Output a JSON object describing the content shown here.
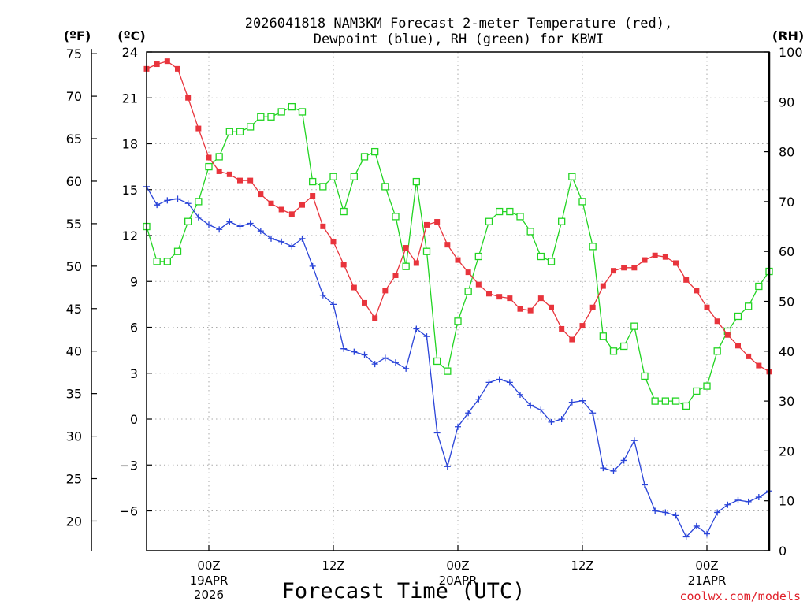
{
  "chart_data": {
    "type": "line",
    "title_line1": "2026041818 NAM3KM Forecast 2-meter Temperature (red),",
    "title_line2": "Dewpoint (blue), RH (green) for KBWI",
    "xlabel": "Forecast Time (UTC)",
    "credit": "coolwx.com/models",
    "x_unit": "forecast hour (hours after 2026041818)",
    "x_range": [
      0,
      60
    ],
    "units": {
      "fahrenheit": "(ºF)",
      "celsius": "(ºC)",
      "rh": "(RH)"
    },
    "celsius_range": [
      -8.6,
      24.0
    ],
    "celsius_ticks": [
      "24",
      "21",
      "18",
      "15",
      "12",
      "9",
      "6",
      "3",
      "0",
      "−3",
      "−6"
    ],
    "celsius_tick_values": [
      24,
      21,
      18,
      15,
      12,
      9,
      6,
      3,
      0,
      -3,
      -6
    ],
    "fahrenheit_ticks": [
      "75",
      "70",
      "65",
      "60",
      "55",
      "50",
      "45",
      "40",
      "35",
      "30",
      "25",
      "20"
    ],
    "fahrenheit_tick_values": [
      75,
      70,
      65,
      60,
      55,
      50,
      45,
      40,
      35,
      30,
      25,
      20
    ],
    "rh_range": [
      0,
      100
    ],
    "rh_ticks": [
      "100",
      "90",
      "80",
      "70",
      "60",
      "50",
      "40",
      "30",
      "20",
      "10",
      "0"
    ],
    "rh_tick_values": [
      100,
      90,
      80,
      70,
      60,
      50,
      40,
      30,
      20,
      10,
      0
    ],
    "x_ticks": [
      {
        "hour": 6,
        "line1": "00Z",
        "line2": "19APR",
        "line3": "2026"
      },
      {
        "hour": 18,
        "line1": "12Z",
        "line2": "",
        "line3": ""
      },
      {
        "hour": 30,
        "line1": "00Z",
        "line2": "20APR",
        "line3": ""
      },
      {
        "hour": 42,
        "line1": "12Z",
        "line2": "",
        "line3": ""
      },
      {
        "hour": 54,
        "line1": "00Z",
        "line2": "21APR",
        "line3": ""
      }
    ],
    "colors": {
      "temperature": "#e8343c",
      "dewpoint": "#2a44d8",
      "rh": "#22d422",
      "grid": "#aaaaaa",
      "credit": "#e0202a"
    },
    "series": [
      {
        "name": "Temperature",
        "axis": "celsius",
        "marker": "filled-square",
        "color": "#e8343c",
        "x": [
          0,
          1,
          2,
          3,
          4,
          5,
          6,
          7,
          8,
          9,
          10,
          11,
          12,
          13,
          14,
          15,
          16,
          17,
          18,
          19,
          20,
          21,
          22,
          23,
          24,
          25,
          26,
          27,
          28,
          29,
          30,
          31,
          32,
          33,
          34,
          35,
          36,
          37,
          38,
          39,
          40,
          41,
          42,
          43,
          44,
          45,
          46,
          47,
          48,
          49,
          50,
          51,
          52,
          53,
          54,
          55,
          56,
          57,
          58,
          59,
          60
        ],
        "values": [
          22.9,
          23.2,
          23.4,
          22.9,
          21.0,
          19.0,
          17.1,
          16.2,
          16.0,
          15.6,
          15.6,
          14.7,
          14.1,
          13.7,
          13.4,
          14.0,
          14.6,
          12.6,
          11.6,
          10.1,
          8.6,
          7.6,
          6.6,
          8.4,
          9.4,
          11.2,
          10.2,
          12.7,
          12.9,
          11.4,
          10.4,
          9.6,
          8.8,
          8.2,
          8.0,
          7.9,
          7.2,
          7.1,
          7.9,
          7.3,
          5.9,
          5.2,
          6.1,
          7.3,
          8.7,
          9.7,
          9.9,
          9.9,
          10.4,
          10.7,
          10.6,
          10.2,
          9.1,
          8.4,
          7.3,
          6.4,
          5.5,
          4.8,
          4.1,
          3.5,
          3.1
        ]
      },
      {
        "name": "Dewpoint",
        "axis": "celsius",
        "marker": "plus",
        "color": "#2a44d8",
        "x": [
          0,
          1,
          2,
          3,
          4,
          5,
          6,
          7,
          8,
          9,
          10,
          11,
          12,
          13,
          14,
          15,
          16,
          17,
          18,
          19,
          20,
          21,
          22,
          23,
          24,
          25,
          26,
          27,
          28,
          29,
          30,
          31,
          32,
          33,
          34,
          35,
          36,
          37,
          38,
          39,
          40,
          41,
          42,
          43,
          44,
          45,
          46,
          47,
          48,
          49,
          50,
          51,
          52,
          53,
          54,
          55,
          56,
          57,
          58,
          59,
          60
        ],
        "values": [
          15.2,
          14.0,
          14.3,
          14.4,
          14.1,
          13.2,
          12.7,
          12.4,
          12.9,
          12.6,
          12.8,
          12.3,
          11.8,
          11.6,
          11.3,
          11.8,
          10.0,
          8.1,
          7.5,
          4.6,
          4.4,
          4.2,
          3.6,
          4.0,
          3.7,
          3.3,
          5.9,
          5.4,
          -0.9,
          -3.1,
          -0.5,
          0.4,
          1.3,
          2.4,
          2.6,
          2.4,
          1.6,
          0.9,
          0.6,
          -0.2,
          0.0,
          1.1,
          1.2,
          0.4,
          -3.2,
          -3.4,
          -2.7,
          -1.4,
          -4.3,
          -6.0,
          -6.1,
          -6.3,
          -7.7,
          -7.0,
          -7.5,
          -6.1,
          -5.6,
          -5.3,
          -5.4,
          -5.1,
          -4.7
        ]
      },
      {
        "name": "RH",
        "axis": "rh",
        "marker": "open-square",
        "color": "#22d422",
        "x": [
          0,
          1,
          2,
          3,
          4,
          5,
          6,
          7,
          8,
          9,
          10,
          11,
          12,
          13,
          14,
          15,
          16,
          17,
          18,
          19,
          20,
          21,
          22,
          23,
          24,
          25,
          26,
          27,
          28,
          29,
          30,
          31,
          32,
          33,
          34,
          35,
          36,
          37,
          38,
          39,
          40,
          41,
          42,
          43,
          44,
          45,
          46,
          47,
          48,
          49,
          50,
          51,
          52,
          53,
          54,
          55,
          56,
          57,
          58,
          59,
          60
        ],
        "values": [
          65,
          58,
          58,
          60,
          66,
          70,
          77,
          79,
          84,
          84,
          85,
          87,
          87,
          88,
          89,
          88,
          74,
          73,
          75,
          68,
          75,
          79,
          80,
          73,
          67,
          57,
          74,
          60,
          38,
          36,
          46,
          52,
          59,
          66,
          68,
          68,
          67,
          64,
          59,
          58,
          66,
          75,
          70,
          61,
          43,
          40,
          41,
          45,
          35,
          30,
          30,
          30,
          29,
          32,
          33,
          40,
          44,
          47,
          49,
          53,
          56
        ]
      }
    ]
  }
}
